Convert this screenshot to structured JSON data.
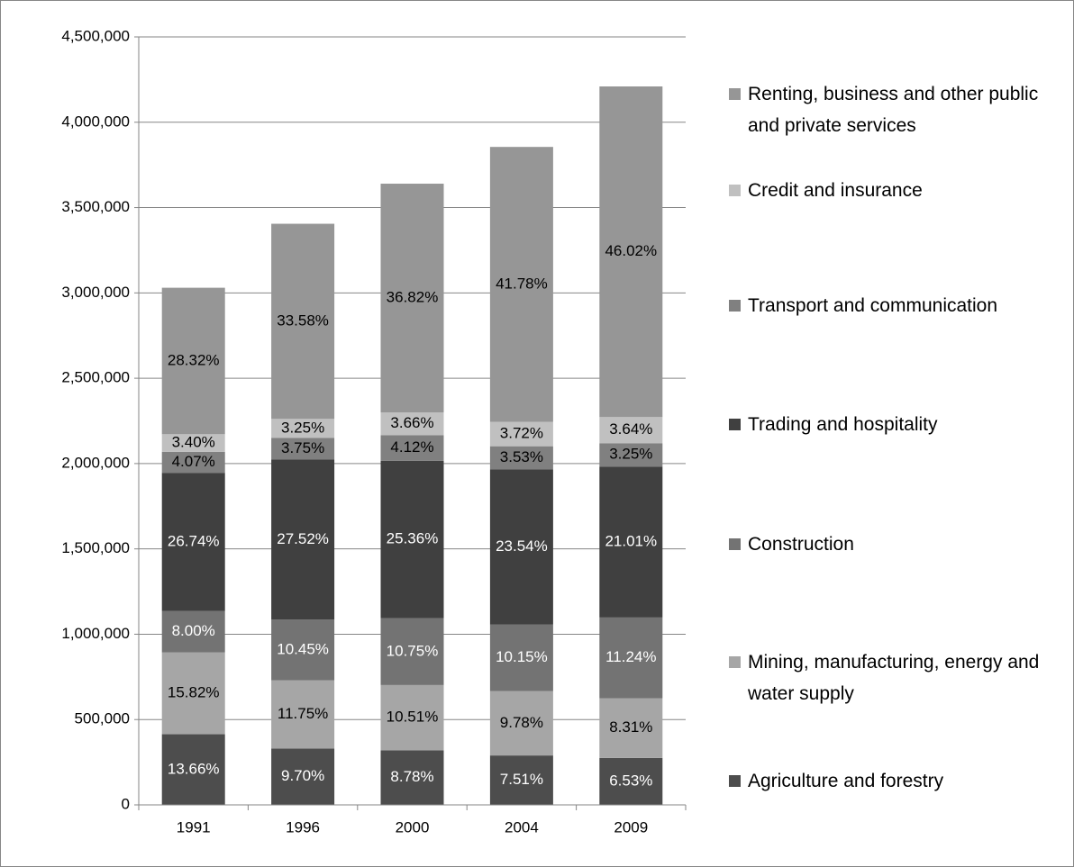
{
  "chart_data": {
    "type": "stacked_bar",
    "categories": [
      "1991",
      "1996",
      "2000",
      "2004",
      "2009"
    ],
    "ylim": [
      0,
      4500000
    ],
    "yticks": [
      0,
      {
        "value": 500000,
        "label": "500,000"
      },
      {
        "value": 1000000,
        "label": "1,000,000"
      },
      {
        "value": 1500000,
        "label": "1,500,000"
      },
      {
        "value": 2000000,
        "label": "2,000,000"
      },
      {
        "value": 2500000,
        "label": "2,500,000"
      },
      {
        "value": 3000000,
        "label": "3,000,000"
      },
      {
        "value": 3500000,
        "label": "3,500,000"
      },
      {
        "value": 4000000,
        "label": "4,000,000"
      },
      {
        "value": 4500000,
        "label": "4,500,000"
      }
    ],
    "grid": true,
    "legend": "right",
    "series": [
      {
        "name": "Agriculture and forestry",
        "color": "#4d4d4d",
        "label_color": "#ffffff",
        "values": [
          413900,
          330300,
          319600,
          289500,
          274900
        ],
        "data_labels": [
          "13.66%",
          "9.70%",
          "8.78%",
          "7.51%",
          "6.53%"
        ]
      },
      {
        "name": "Mining, manufacturing, energy and water supply",
        "color": "#a6a6a6",
        "label_color": "#000000",
        "values": [
          479300,
          400100,
          382600,
          377000,
          349900
        ],
        "data_labels": [
          "15.82%",
          "11.75%",
          "10.51%",
          "9.78%",
          "8.31%"
        ]
      },
      {
        "name": "Construction",
        "color": "#737373",
        "label_color": "#ffffff",
        "values": [
          242400,
          355800,
          391300,
          391300,
          473200
        ],
        "data_labels": [
          "8.00%",
          "10.45%",
          "10.75%",
          "10.15%",
          "11.24%"
        ]
      },
      {
        "name": "Trading and hospitality",
        "color": "#404040",
        "label_color": "#ffffff",
        "values": [
          810200,
          937100,
          923100,
          907500,
          884500
        ],
        "data_labels": [
          "26.74%",
          "27.52%",
          "25.36%",
          "23.54%",
          "21.01%"
        ]
      },
      {
        "name": "Transport and communication",
        "color": "#808080",
        "label_color": "#000000",
        "values": [
          123300,
          127700,
          150000,
          136100,
          136800
        ],
        "data_labels": [
          "4.07%",
          "3.75%",
          "4.12%",
          "3.53%",
          "3.25%"
        ]
      },
      {
        "name": "Credit and insurance",
        "color": "#c0c0c0",
        "label_color": "#000000",
        "values": [
          103000,
          110700,
          133200,
          143400,
          153200
        ],
        "data_labels": [
          "3.40%",
          "3.25%",
          "3.66%",
          "3.72%",
          "3.64%"
        ]
      },
      {
        "name": "Renting, business and other public and private services",
        "color": "#969696",
        "label_color": "#000000",
        "values": [
          858100,
          1143400,
          1340200,
          1610600,
          1937400
        ],
        "data_labels": [
          "28.32%",
          "33.58%",
          "36.82%",
          "41.78%",
          "46.02%"
        ]
      }
    ]
  }
}
